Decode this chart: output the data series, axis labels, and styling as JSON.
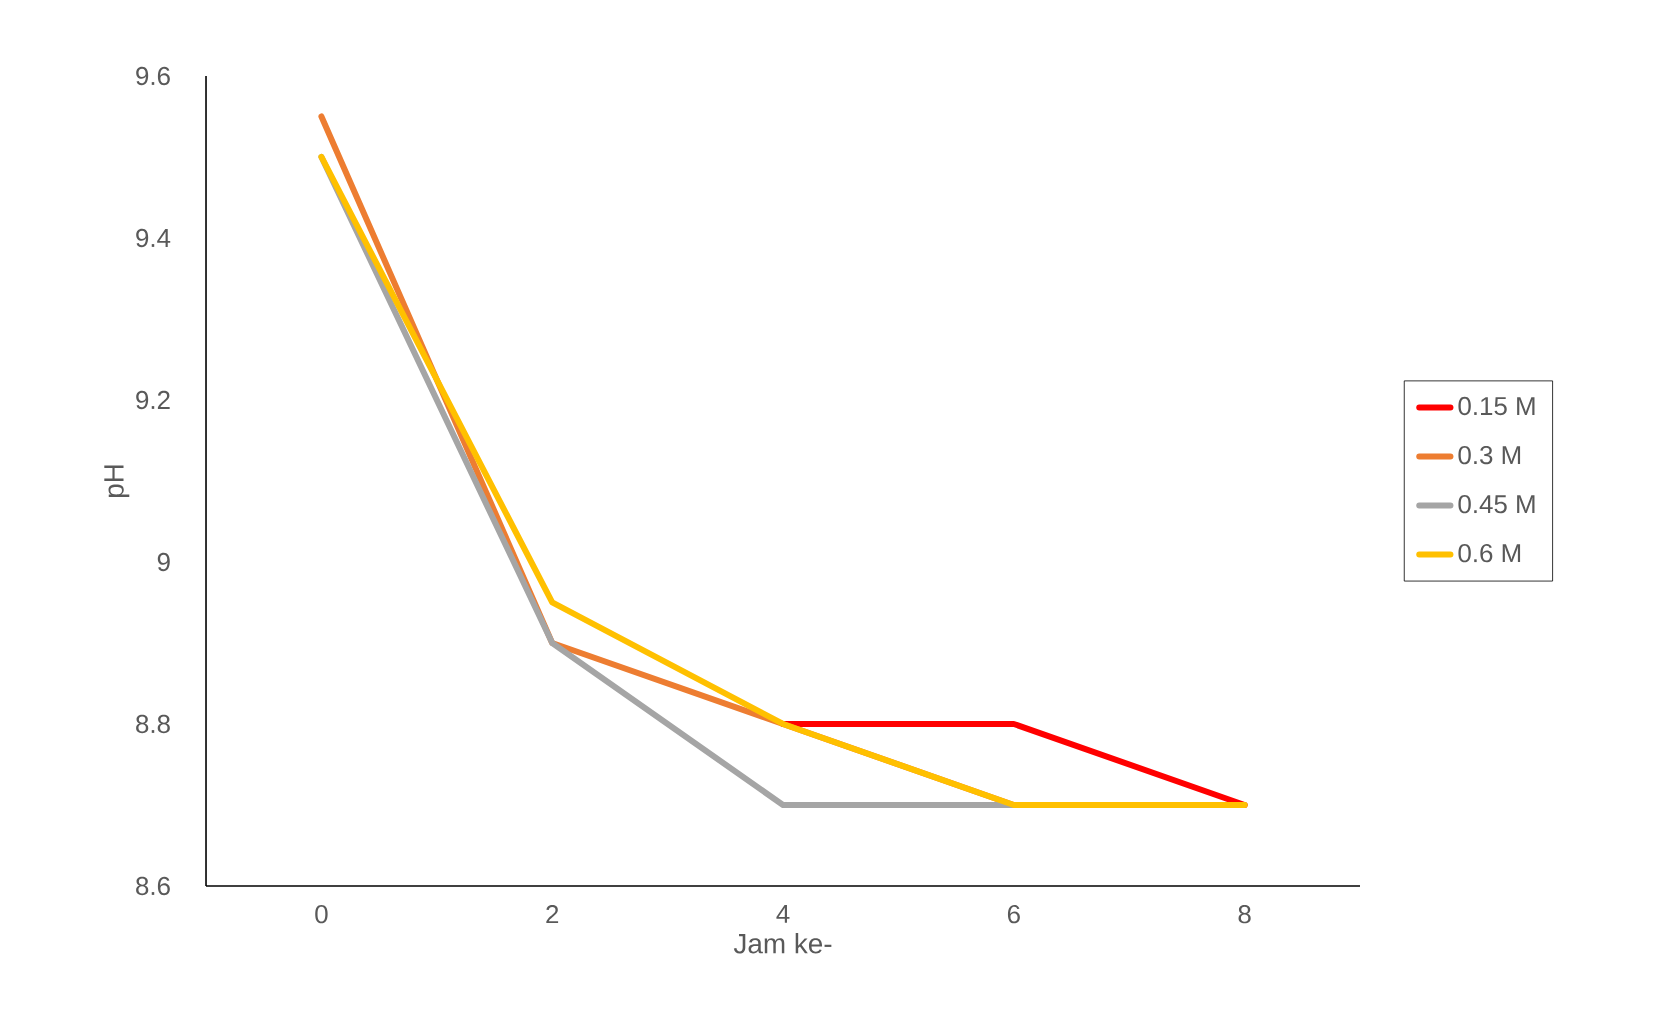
{
  "chart_data": {
    "type": "line",
    "xlabel": "Jam ke-",
    "ylabel": "pH",
    "categories": [
      "0",
      "2",
      "4",
      "6",
      "8"
    ],
    "series": [
      {
        "name": "0.15 M",
        "color": "#ff0000",
        "values": [
          null,
          null,
          8.8,
          8.8,
          8.7
        ]
      },
      {
        "name": "0.3 M",
        "color": "#ed7d31",
        "values": [
          9.55,
          8.9,
          8.8,
          8.7,
          8.7
        ]
      },
      {
        "name": "0.45 M",
        "color": "#a5a5a5",
        "values": [
          9.5,
          8.9,
          8.7,
          8.7,
          null
        ]
      },
      {
        "name": "0.6 M",
        "color": "#ffc000",
        "values": [
          9.5,
          8.95,
          8.8,
          8.7,
          8.7
        ]
      }
    ],
    "ylim": [
      8.6,
      9.6
    ],
    "yticks": [
      8.6,
      8.8,
      9,
      9.2,
      9.4,
      9.6
    ],
    "grid": false,
    "legend": "right",
    "marker": "none",
    "line_style": "solid"
  }
}
